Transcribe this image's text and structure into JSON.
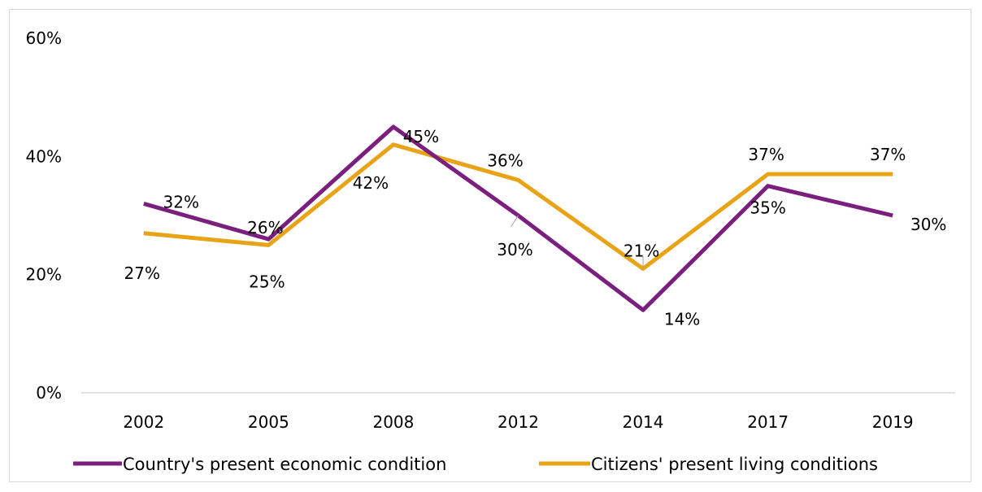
{
  "chart_data": {
    "type": "line",
    "title": "",
    "xlabel": "",
    "ylabel": "",
    "categories": [
      "2002",
      "2005",
      "2008",
      "2012",
      "2014",
      "2017",
      "2019"
    ],
    "ylim": [
      0,
      60
    ],
    "yticks": [
      0,
      20,
      40,
      60
    ],
    "ytick_labels": [
      "0%",
      "20%",
      "40%",
      "60%"
    ],
    "grid": false,
    "legend_position": "bottom",
    "series": [
      {
        "name": "Country's present economic condition",
        "color": "#7b1f7e",
        "values": [
          32,
          26,
          45,
          30,
          14,
          35,
          30
        ],
        "labels": [
          "32%",
          "26%",
          "45%",
          "30%",
          "14%",
          "35%",
          "30%"
        ]
      },
      {
        "name": "Citizens' present living conditions",
        "color": "#e8a317",
        "values": [
          27,
          25,
          42,
          36,
          21,
          37,
          37
        ],
        "labels": [
          "27%",
          "25%",
          "42%",
          "36%",
          "21%",
          "37%",
          "37%"
        ]
      }
    ]
  }
}
